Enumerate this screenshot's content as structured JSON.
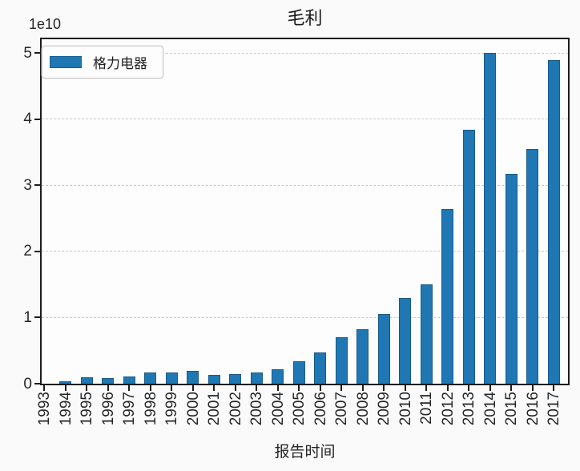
{
  "figure": {
    "title": "毛利",
    "y_offset_label": "1e10",
    "xlabel": "报告时间",
    "legend_label": "格力电器"
  },
  "chart_data": {
    "type": "bar",
    "title": "毛利",
    "xlabel": "报告时间",
    "ylabel": "",
    "y_offset_label": "1e10",
    "legend_position": "upper left",
    "grid": {
      "axis": "y",
      "style": "dashed",
      "color": "#c9c9c9"
    },
    "bar_color": "#1f77b4",
    "categories": [
      "1993",
      "1994",
      "1995",
      "1996",
      "1997",
      "1998",
      "1999",
      "2000",
      "2001",
      "2002",
      "2003",
      "2004",
      "2005",
      "2006",
      "2007",
      "2008",
      "2009",
      "2010",
      "2011",
      "2012",
      "2013",
      "2014",
      "2015",
      "2016",
      "2017"
    ],
    "series": [
      {
        "name": "格力电器",
        "color": "#1f77b4",
        "values": [
          50000000,
          400000000,
          1000000000,
          850000000,
          1100000000,
          1750000000,
          1650000000,
          2000000000,
          1300000000,
          1400000000,
          1700000000,
          2150000000,
          3350000000,
          4700000000,
          7000000000,
          8200000000,
          10600000000,
          13000000000,
          15000000000,
          26400000000,
          38400000000,
          50000000000,
          31800000000,
          35500000000,
          49000000000
        ]
      }
    ],
    "yticks": [
      0,
      1,
      2,
      3,
      4,
      5
    ],
    "y_multiplier": 10000000000,
    "ylim": [
      0,
      52000000000
    ]
  }
}
